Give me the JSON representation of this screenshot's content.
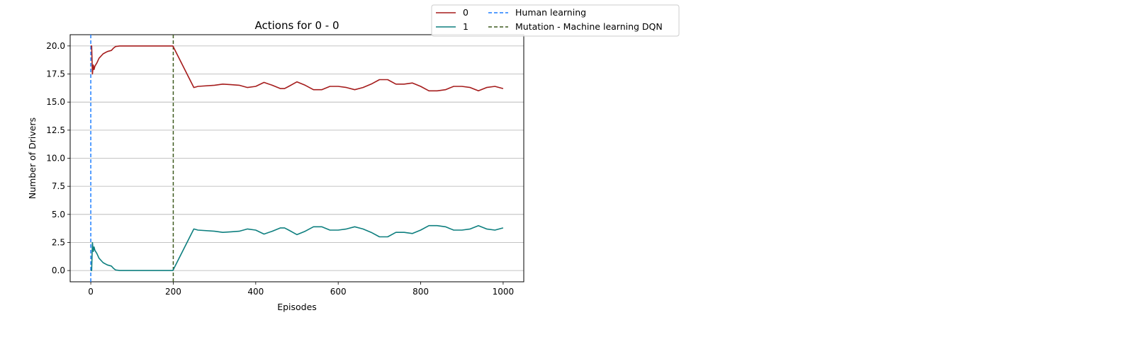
{
  "chart_data": {
    "type": "line",
    "title": "Actions for 0 - 0",
    "xlabel": "Episodes",
    "ylabel": "Number of Drivers",
    "xlim": [
      -50,
      1050
    ],
    "ylim": [
      -1,
      21
    ],
    "xticks": [
      0,
      200,
      400,
      600,
      800,
      1000
    ],
    "yticks": [
      0.0,
      2.5,
      5.0,
      7.5,
      10.0,
      12.5,
      15.0,
      17.5,
      20.0
    ],
    "ytick_labels": [
      "0.0",
      "2.5",
      "5.0",
      "7.5",
      "10.0",
      "12.5",
      "15.0",
      "17.5",
      "20.0"
    ],
    "grid": "horizontal",
    "legend_position": "upper right, outside plot",
    "series": [
      {
        "name": "0",
        "color": "#a51c1c",
        "x": [
          0,
          2,
          4,
          6,
          8,
          10,
          15,
          20,
          30,
          40,
          50,
          55,
          60,
          70,
          80,
          100,
          150,
          199,
          250,
          260,
          300,
          320,
          340,
          360,
          380,
          400,
          420,
          440,
          460,
          470,
          480,
          500,
          520,
          540,
          560,
          580,
          600,
          620,
          640,
          660,
          680,
          700,
          720,
          740,
          760,
          780,
          800,
          820,
          840,
          860,
          880,
          900,
          920,
          940,
          960,
          980,
          1000
        ],
        "values": [
          20.0,
          20.0,
          17.5,
          18.3,
          17.9,
          18.2,
          18.5,
          18.9,
          19.3,
          19.5,
          19.6,
          19.8,
          19.95,
          20.0,
          20.0,
          20.0,
          20.0,
          20.0,
          16.3,
          16.4,
          16.5,
          16.6,
          16.55,
          16.5,
          16.3,
          16.4,
          16.75,
          16.5,
          16.2,
          16.2,
          16.4,
          16.8,
          16.5,
          16.1,
          16.1,
          16.4,
          16.4,
          16.3,
          16.1,
          16.3,
          16.6,
          17.0,
          17.0,
          16.6,
          16.6,
          16.7,
          16.4,
          16.0,
          16.0,
          16.1,
          16.4,
          16.4,
          16.3,
          16.0,
          16.3,
          16.4,
          16.2
        ]
      },
      {
        "name": "1",
        "color": "#0e7f7f",
        "x": [
          0,
          2,
          4,
          6,
          8,
          10,
          15,
          20,
          30,
          40,
          50,
          55,
          60,
          70,
          80,
          100,
          150,
          199,
          250,
          260,
          300,
          320,
          340,
          360,
          380,
          400,
          420,
          440,
          460,
          470,
          480,
          500,
          520,
          540,
          560,
          580,
          600,
          620,
          640,
          660,
          680,
          700,
          720,
          740,
          760,
          780,
          800,
          820,
          840,
          860,
          880,
          900,
          920,
          940,
          960,
          980,
          1000
        ],
        "values": [
          0.0,
          0.0,
          2.5,
          1.7,
          2.1,
          1.8,
          1.5,
          1.1,
          0.7,
          0.5,
          0.4,
          0.2,
          0.05,
          0.0,
          0.0,
          0.0,
          0.0,
          0.0,
          3.7,
          3.6,
          3.5,
          3.4,
          3.45,
          3.5,
          3.7,
          3.6,
          3.25,
          3.5,
          3.8,
          3.8,
          3.6,
          3.2,
          3.5,
          3.9,
          3.9,
          3.6,
          3.6,
          3.7,
          3.9,
          3.7,
          3.4,
          3.0,
          3.0,
          3.4,
          3.4,
          3.3,
          3.6,
          4.0,
          4.0,
          3.9,
          3.6,
          3.6,
          3.7,
          4.0,
          3.7,
          3.6,
          3.8
        ]
      }
    ],
    "vlines": [
      {
        "name": "Human learning",
        "x": 0,
        "color": "#1f7fff",
        "style": "dashed"
      },
      {
        "name": "Mutation - Machine learning DQN",
        "x": 200,
        "color": "#3d5a1e",
        "style": "dashed"
      }
    ]
  }
}
